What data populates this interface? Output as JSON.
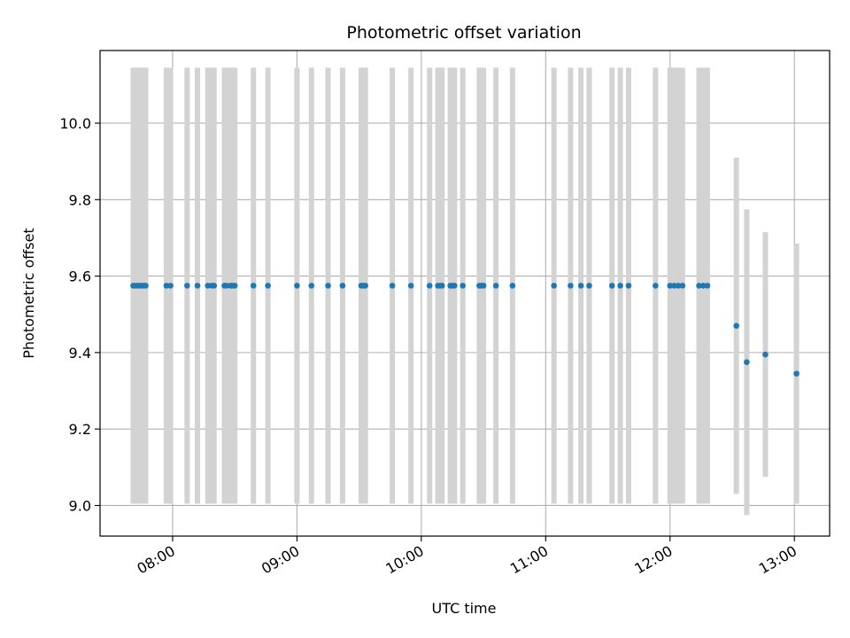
{
  "chart_data": {
    "type": "scatter",
    "title": "Photometric offset variation",
    "xlabel": "UTC time",
    "ylabel": "Photometric offset",
    "x_unit": "UTC time (HH:MM)",
    "xlim": [
      "07:25",
      "13:17"
    ],
    "ylim": [
      8.92,
      10.19
    ],
    "x_ticks": [
      "08:00",
      "09:00",
      "10:00",
      "11:00",
      "12:00",
      "13:00"
    ],
    "y_ticks": [
      9.0,
      9.2,
      9.4,
      9.6,
      9.8,
      10.0
    ],
    "grid": true,
    "colors": {
      "points": "#1f77b4",
      "errorbars": "#d3d3d3"
    },
    "series": [
      {
        "x": [
          "07:41",
          "07:42",
          "07:43",
          "07:44",
          "07:45",
          "07:46",
          "07:47",
          "07:57",
          "07:59",
          "08:07",
          "08:12",
          "08:17",
          "08:19",
          "08:20",
          "08:25",
          "08:26",
          "08:28",
          "08:29",
          "08:30",
          "08:39",
          "08:46",
          "09:00",
          "09:07",
          "09:15",
          "09:22",
          "09:31",
          "09:32",
          "09:33",
          "09:46",
          "09:55",
          "10:04",
          "10:08",
          "10:09",
          "10:10",
          "10:14",
          "10:15",
          "10:16",
          "10:20",
          "10:28",
          "10:29",
          "10:30",
          "10:36",
          "10:44",
          "11:04",
          "11:12",
          "11:17",
          "11:21",
          "11:32",
          "11:36",
          "11:40",
          "11:53",
          "12:00",
          "12:02",
          "12:04",
          "12:06",
          "12:14",
          "12:16",
          "12:18",
          "12:32",
          "12:37",
          "12:46",
          "13:01"
        ],
        "y": [
          9.575,
          9.575,
          9.575,
          9.575,
          9.575,
          9.575,
          9.575,
          9.575,
          9.575,
          9.575,
          9.575,
          9.575,
          9.575,
          9.575,
          9.575,
          9.575,
          9.575,
          9.575,
          9.575,
          9.575,
          9.575,
          9.575,
          9.575,
          9.575,
          9.575,
          9.575,
          9.575,
          9.575,
          9.575,
          9.575,
          9.575,
          9.575,
          9.575,
          9.575,
          9.575,
          9.575,
          9.575,
          9.575,
          9.575,
          9.575,
          9.575,
          9.575,
          9.575,
          9.575,
          9.575,
          9.575,
          9.575,
          9.575,
          9.575,
          9.575,
          9.575,
          9.575,
          9.575,
          9.575,
          9.575,
          9.575,
          9.575,
          9.575,
          9.47,
          9.375,
          9.395,
          9.345
        ],
        "err": [
          0.57,
          0.57,
          0.57,
          0.57,
          0.57,
          0.57,
          0.57,
          0.57,
          0.57,
          0.57,
          0.57,
          0.57,
          0.57,
          0.57,
          0.57,
          0.57,
          0.57,
          0.57,
          0.57,
          0.57,
          0.57,
          0.57,
          0.57,
          0.57,
          0.57,
          0.57,
          0.57,
          0.57,
          0.57,
          0.57,
          0.57,
          0.57,
          0.57,
          0.57,
          0.57,
          0.57,
          0.57,
          0.57,
          0.57,
          0.57,
          0.57,
          0.57,
          0.57,
          0.57,
          0.57,
          0.57,
          0.57,
          0.57,
          0.57,
          0.57,
          0.57,
          0.57,
          0.57,
          0.57,
          0.57,
          0.57,
          0.57,
          0.57,
          0.44,
          0.4,
          0.32,
          0.34
        ]
      }
    ]
  }
}
